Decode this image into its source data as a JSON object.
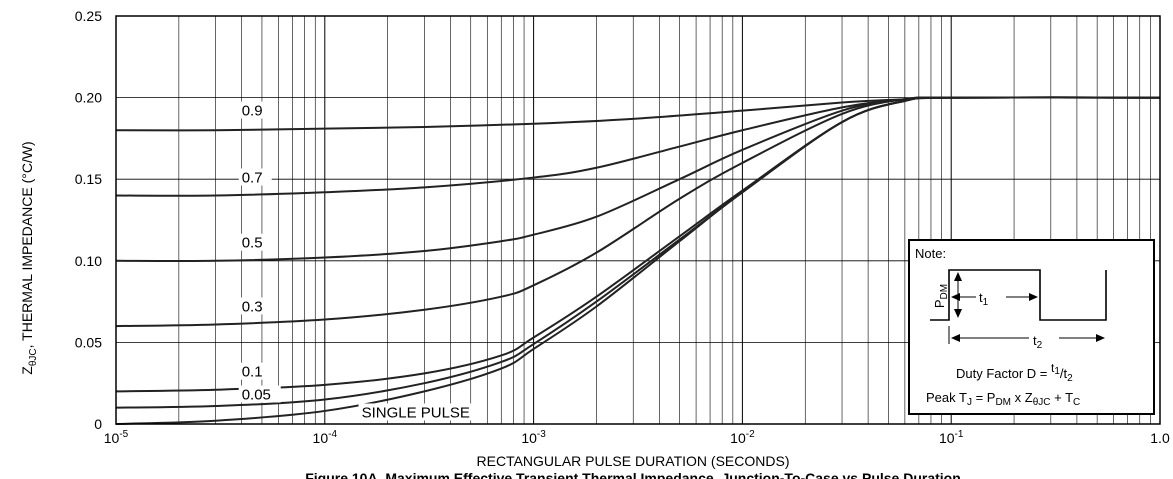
{
  "chart_data": {
    "type": "line",
    "x_scale": "log",
    "xlim": [
      1e-05,
      1.0
    ],
    "ylim": [
      0,
      0.25
    ],
    "grid": true,
    "xlabel": "RECTANGULAR PULSE DURATION (SECONDS)",
    "ylabel_main": "Z",
    "ylabel_sub": "θJC",
    "ylabel_rest": ", THERMAL IMPEDANCE (°C/W)",
    "caption": "Figure 10A. Maximum Effective Transient Thermal Impedance, Junction-To-Case vs Pulse Duration",
    "x_ticks": [
      {
        "value": 1e-05,
        "base": "10",
        "exp": "-5"
      },
      {
        "value": 0.0001,
        "base": "10",
        "exp": "-4"
      },
      {
        "value": 0.001,
        "base": "10",
        "exp": "-3"
      },
      {
        "value": 0.01,
        "base": "10",
        "exp": "-2"
      },
      {
        "value": 0.1,
        "base": "10",
        "exp": "-1"
      },
      {
        "value": 1.0,
        "base": "1.0",
        "exp": ""
      }
    ],
    "y_ticks": [
      {
        "value": 0,
        "label": "0"
      },
      {
        "value": 0.05,
        "label": "0.05"
      },
      {
        "value": 0.1,
        "label": "0.10"
      },
      {
        "value": 0.15,
        "label": "0.15"
      },
      {
        "value": 0.2,
        "label": "0.20"
      },
      {
        "value": 0.25,
        "label": "0.25"
      }
    ],
    "series": [
      {
        "name": "0.9",
        "label_at": [
          4e-05,
          0.189
        ],
        "points": [
          [
            1e-05,
            0.18
          ],
          [
            3e-05,
            0.18
          ],
          [
            0.0001,
            0.181
          ],
          [
            0.0003,
            0.182
          ],
          [
            0.001,
            0.184
          ],
          [
            0.003,
            0.187
          ],
          [
            0.01,
            0.192
          ],
          [
            0.03,
            0.197
          ],
          [
            0.06,
            0.199
          ],
          [
            0.1,
            0.2
          ],
          [
            1.0,
            0.2
          ]
        ]
      },
      {
        "name": "0.7",
        "label_at": [
          4e-05,
          0.148
        ],
        "points": [
          [
            1e-05,
            0.14
          ],
          [
            3e-05,
            0.14
          ],
          [
            0.0001,
            0.142
          ],
          [
            0.0003,
            0.145
          ],
          [
            0.001,
            0.151
          ],
          [
            0.002,
            0.157
          ],
          [
            0.005,
            0.17
          ],
          [
            0.01,
            0.18
          ],
          [
            0.03,
            0.194
          ],
          [
            0.06,
            0.199
          ],
          [
            0.1,
            0.2
          ],
          [
            1.0,
            0.2
          ]
        ]
      },
      {
        "name": "0.5",
        "label_at": [
          4e-05,
          0.108
        ],
        "points": [
          [
            1e-05,
            0.1
          ],
          [
            3e-05,
            0.1
          ],
          [
            0.0001,
            0.102
          ],
          [
            0.0003,
            0.106
          ],
          [
            0.0007,
            0.112
          ],
          [
            0.001,
            0.116
          ],
          [
            0.002,
            0.127
          ],
          [
            0.005,
            0.15
          ],
          [
            0.01,
            0.168
          ],
          [
            0.03,
            0.192
          ],
          [
            0.06,
            0.199
          ],
          [
            0.1,
            0.2
          ],
          [
            1.0,
            0.2
          ]
        ]
      },
      {
        "name": "0.3",
        "label_at": [
          4e-05,
          0.069
        ],
        "points": [
          [
            1e-05,
            0.06
          ],
          [
            3e-05,
            0.061
          ],
          [
            0.0001,
            0.064
          ],
          [
            0.0003,
            0.07
          ],
          [
            0.0007,
            0.078
          ],
          [
            0.001,
            0.085
          ],
          [
            0.002,
            0.105
          ],
          [
            0.005,
            0.138
          ],
          [
            0.01,
            0.16
          ],
          [
            0.03,
            0.19
          ],
          [
            0.06,
            0.199
          ],
          [
            0.1,
            0.2
          ],
          [
            1.0,
            0.2
          ]
        ]
      },
      {
        "name": "0.1",
        "label_at": [
          4e-05,
          0.029
        ],
        "points": [
          [
            1e-05,
            0.02
          ],
          [
            3e-05,
            0.021
          ],
          [
            0.0001,
            0.024
          ],
          [
            0.0003,
            0.031
          ],
          [
            0.0007,
            0.042
          ],
          [
            0.001,
            0.053
          ],
          [
            0.002,
            0.078
          ],
          [
            0.005,
            0.115
          ],
          [
            0.01,
            0.143
          ],
          [
            0.03,
            0.185
          ],
          [
            0.06,
            0.198
          ],
          [
            0.1,
            0.2
          ],
          [
            1.0,
            0.2
          ]
        ]
      },
      {
        "name": "0.05",
        "label_at": [
          4e-05,
          0.015
        ],
        "points": [
          [
            1e-05,
            0.01
          ],
          [
            3e-05,
            0.011
          ],
          [
            0.0001,
            0.015
          ],
          [
            0.0003,
            0.025
          ],
          [
            0.0007,
            0.038
          ],
          [
            0.001,
            0.049
          ],
          [
            0.002,
            0.075
          ],
          [
            0.005,
            0.113
          ],
          [
            0.01,
            0.142
          ],
          [
            0.03,
            0.185
          ],
          [
            0.06,
            0.198
          ],
          [
            0.1,
            0.2
          ],
          [
            1.0,
            0.2
          ]
        ]
      },
      {
        "name": "SINGLE PULSE",
        "label_at": [
          0.00015,
          0.004
        ],
        "points": [
          [
            1e-05,
            0.0
          ],
          [
            3e-05,
            0.002
          ],
          [
            0.0001,
            0.008
          ],
          [
            0.0003,
            0.02
          ],
          [
            0.0007,
            0.034
          ],
          [
            0.001,
            0.046
          ],
          [
            0.002,
            0.072
          ],
          [
            0.005,
            0.112
          ],
          [
            0.01,
            0.142
          ],
          [
            0.03,
            0.185
          ],
          [
            0.06,
            0.198
          ],
          [
            0.1,
            0.2
          ],
          [
            1.0,
            0.2
          ]
        ]
      }
    ]
  },
  "note_box": {
    "title": "Note:",
    "pdm_main": "P",
    "pdm_sub": "DM",
    "t1_main": "t",
    "t1_sub": "1",
    "t2_main": "t",
    "t2_sub": "2",
    "duty_prefix": "Duty Factor  D = ",
    "duty_num_main": "t",
    "duty_num_sub": "1",
    "duty_slash": "/",
    "duty_den_main": "t",
    "duty_den_sub": "2",
    "peak_prefix": "Peak T",
    "peak_tj_sub": "J",
    "peak_eq": " = P",
    "peak_pdm_sub": "DM",
    "peak_x": " x Z",
    "peak_z_sub": "θJC",
    "peak_plus": " + T",
    "peak_tc_sub": "C"
  }
}
